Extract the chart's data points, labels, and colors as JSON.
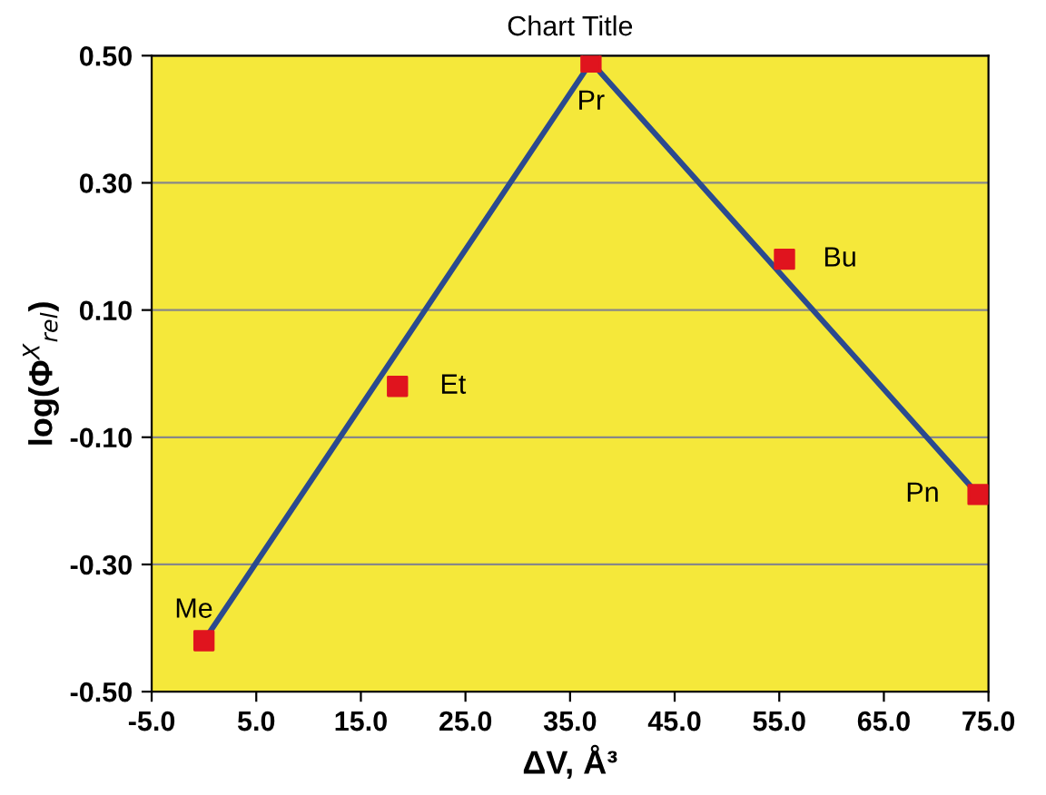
{
  "chart_data": {
    "type": "scatter",
    "title": "Chart Title",
    "xlabel": "ΔV, Å³",
    "ylabel": "log(Φ$^{X}$$_{rel}$)",
    "series": [
      {
        "type": "line",
        "color": "#2b4a8f",
        "x": [
          0,
          37,
          74
        ],
        "values": [
          -0.42,
          0.49,
          -0.19
        ],
        "marker": "none",
        "line_style": "solid"
      },
      {
        "color": "#e0141e",
        "x": [
          0,
          18.5,
          37,
          55.5,
          74
        ],
        "values": [
          -0.42,
          -0.02,
          0.49,
          0.18,
          -0.19
        ],
        "marker": "square"
      }
    ],
    "annotations": [
      {
        "text": "Me",
        "x": 0,
        "y": -0.42
      },
      {
        "text": "Et",
        "x": 18.5,
        "y": -0.02
      },
      {
        "text": "Pr",
        "x": 37,
        "y": 0.49
      },
      {
        "text": "Bu",
        "x": 55.5,
        "y": 0.18
      },
      {
        "text": "Pn",
        "x": 74,
        "y": -0.19
      }
    ],
    "xlim": [
      -5,
      75
    ],
    "ylim": [
      -0.5,
      0.5
    ],
    "xticks": [
      {
        "value": -5,
        "label": "-5.0"
      },
      {
        "value": 5,
        "label": "5.0"
      },
      {
        "value": 15,
        "label": "15.0"
      },
      {
        "value": 25,
        "label": "25.0"
      },
      {
        "value": 35,
        "label": "35.0"
      },
      {
        "value": 45,
        "label": "45.0"
      },
      {
        "value": 55,
        "label": "55.0"
      },
      {
        "value": 65,
        "label": "65.0"
      },
      {
        "value": 75,
        "label": "75.0"
      }
    ],
    "yticks": [
      {
        "value": -0.5,
        "label": "-0.50"
      },
      {
        "value": -0.3,
        "label": "-0.30"
      },
      {
        "value": -0.1,
        "label": "-0.10"
      },
      {
        "value": 0.1,
        "label": "0.10"
      },
      {
        "value": 0.3,
        "label": "0.30"
      },
      {
        "value": 0.5,
        "label": "0.50"
      }
    ],
    "grid": "y",
    "legend": false
  }
}
